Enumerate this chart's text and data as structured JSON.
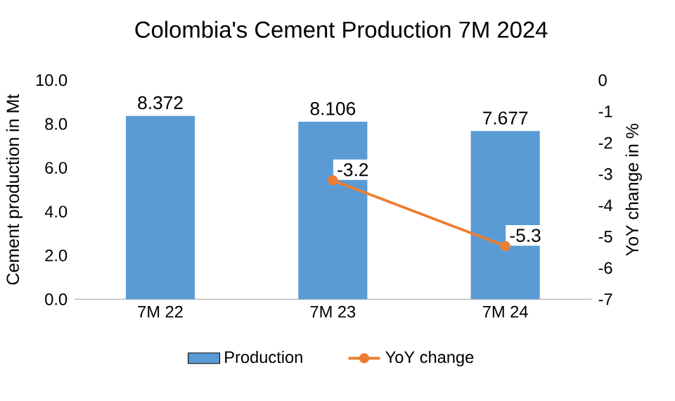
{
  "chart_data": {
    "type": "bar",
    "title": "Colombia's Cement Production 7M 2024",
    "categories": [
      "7M 22",
      "7M 23",
      "7M 24"
    ],
    "series": [
      {
        "name": "Production",
        "color": "#5b9bd5",
        "values": [
          8.372,
          8.106,
          7.677
        ]
      },
      {
        "name": "YoY change",
        "type": "line",
        "axis": "y2",
        "color": "#ed7d31",
        "values": [
          null,
          -3.2,
          -5.3
        ]
      }
    ],
    "ylabel": "Cement production in Mt",
    "y2label": "YoY change in %",
    "ylim": [
      0,
      10
    ],
    "yticks": [
      {
        "value": 0,
        "label": "0.0"
      },
      {
        "value": 2,
        "label": "2.0"
      },
      {
        "value": 4,
        "label": "4.0"
      },
      {
        "value": 6,
        "label": "6.0"
      },
      {
        "value": 8,
        "label": "8.0"
      },
      {
        "value": 10,
        "label": "10.0"
      }
    ],
    "y2lim": [
      -7,
      0
    ],
    "y2ticks": [
      0,
      -1,
      -2,
      -3,
      -4,
      -5,
      -6,
      -7
    ],
    "data_labels": true,
    "legend": "bottom",
    "marker": "circle"
  }
}
